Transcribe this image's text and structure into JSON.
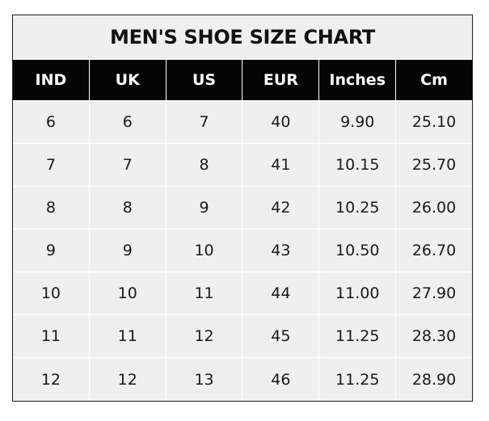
{
  "title": "MEN'S SHOE SIZE CHART",
  "headers": [
    "IND",
    "UK",
    "US",
    "EUR",
    "Inches",
    "Cm"
  ],
  "rows": [
    [
      "6",
      "6",
      "7",
      "40",
      "9.90",
      "25.10"
    ],
    [
      "7",
      "7",
      "8",
      "41",
      "10.15",
      "25.70"
    ],
    [
      "8",
      "8",
      "9",
      "42",
      "10.25",
      "26.00"
    ],
    [
      "9",
      "9",
      "10",
      "43",
      "10.50",
      "26.70"
    ],
    [
      "10",
      "10",
      "11",
      "44",
      "11.00",
      "27.90"
    ],
    [
      "11",
      "11",
      "12",
      "45",
      "11.25",
      "28.30"
    ],
    [
      "12",
      "12",
      "13",
      "46",
      "11.25",
      "28.90"
    ]
  ],
  "colors": {
    "header_bg": "#050505",
    "cell_bg": "#efefef",
    "grid": "#ffffff"
  }
}
